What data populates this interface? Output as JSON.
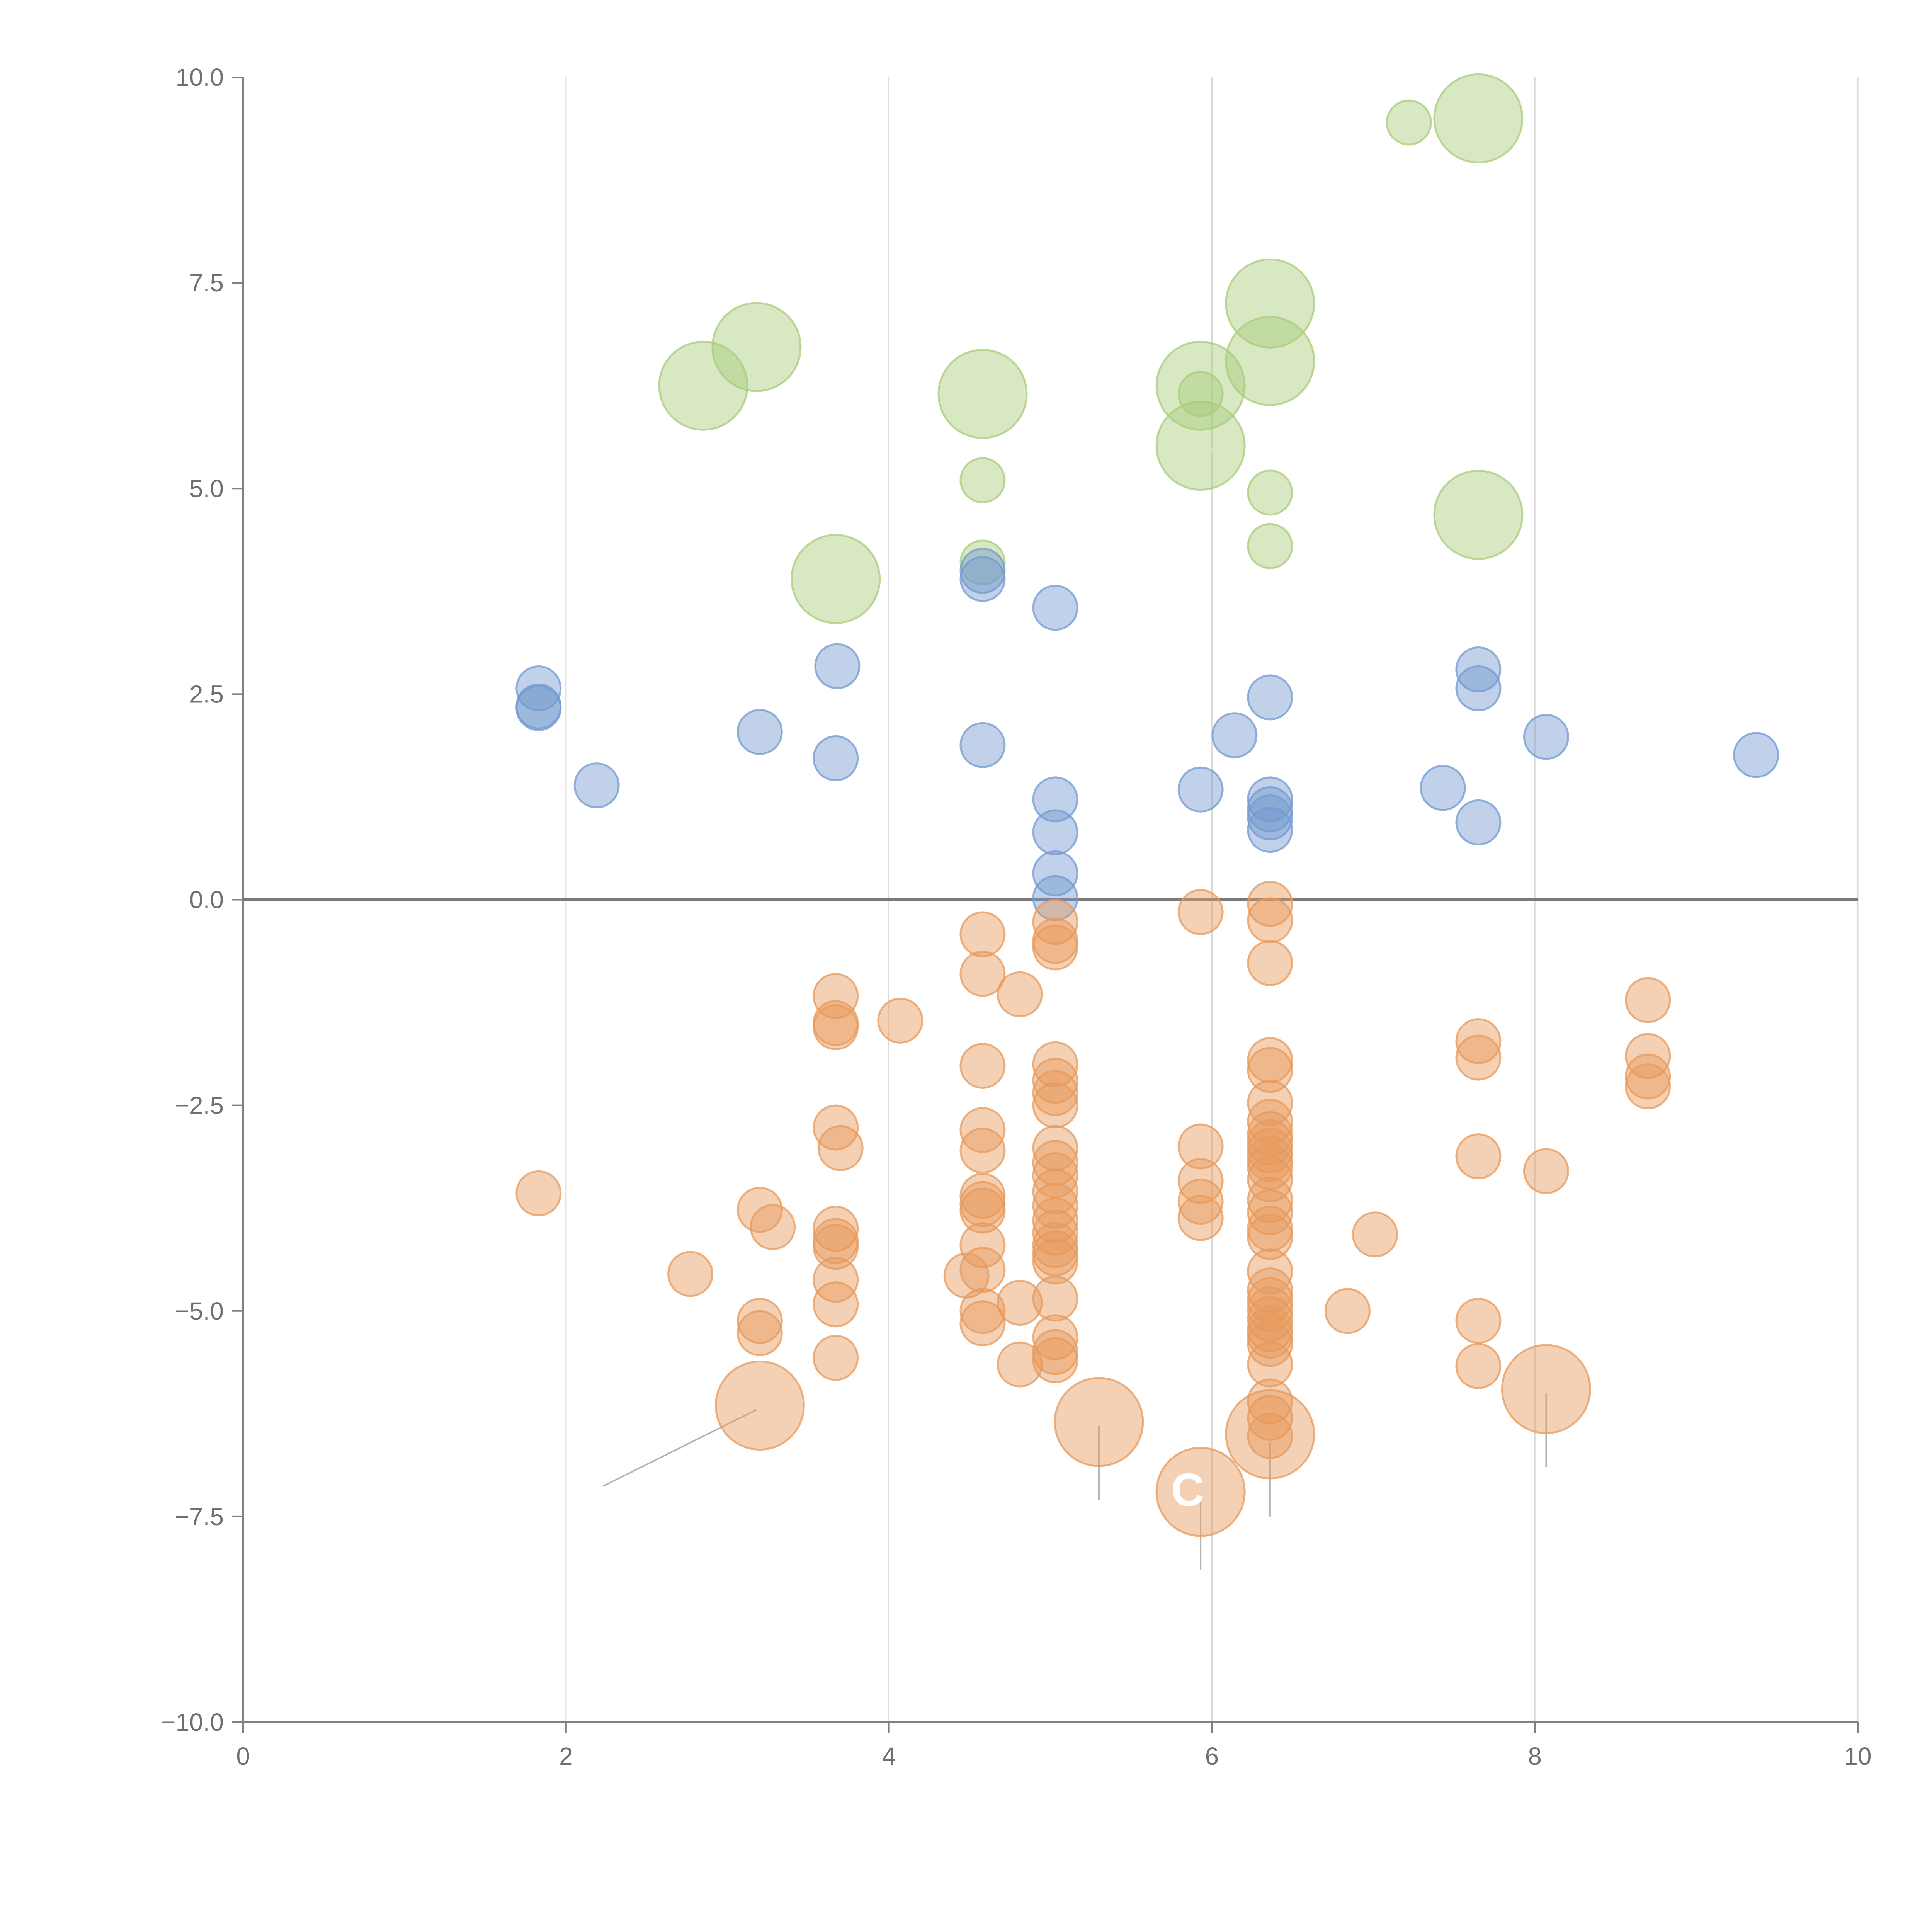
{
  "chart_data": {
    "type": "scatter",
    "title": "",
    "xlabel": "",
    "ylabel": "",
    "xlim": [
      0,
      10
    ],
    "ylim": [
      -10,
      10
    ],
    "grid": "vertical",
    "x_ticks": [
      "0",
      "2",
      "4",
      "6",
      "8",
      "10"
    ],
    "y_ticks": [
      "10.0",
      "7.5",
      "5.0",
      "2.5",
      "0.0",
      "−2.5",
      "−5.0",
      "−7.5",
      "−10.0"
    ],
    "annotation": "C",
    "colors": {
      "green": "#a9cc7a",
      "blue": "#7399cf",
      "orange": "#e79a5c"
    },
    "series": [
      {
        "name": "green",
        "color": "#a9cc7a",
        "points": [
          [
            7.22,
            9.45,
            0.6
          ],
          [
            7.65,
            9.5,
            1.2
          ],
          [
            6.36,
            7.25,
            1.2
          ],
          [
            6.36,
            6.55,
            1.2
          ],
          [
            3.18,
            6.72,
            1.2
          ],
          [
            2.85,
            6.25,
            1.2
          ],
          [
            4.58,
            6.15,
            1.2
          ],
          [
            5.93,
            6.25,
            1.2
          ],
          [
            5.93,
            6.15,
            0.6
          ],
          [
            5.93,
            5.52,
            1.2
          ],
          [
            4.58,
            5.1,
            0.6
          ],
          [
            6.36,
            4.95,
            0.6
          ],
          [
            7.65,
            4.68,
            1.2
          ],
          [
            6.36,
            4.3,
            0.6
          ],
          [
            4.58,
            4.1,
            0.6
          ],
          [
            3.67,
            3.9,
            1.2
          ]
        ]
      },
      {
        "name": "blue",
        "color": "#7399cf",
        "points": [
          [
            4.58,
            4.0,
            0.6
          ],
          [
            4.58,
            3.9,
            0.6
          ],
          [
            5.03,
            3.55,
            0.6
          ],
          [
            3.68,
            2.84,
            0.6
          ],
          [
            7.65,
            2.8,
            0.6
          ],
          [
            1.83,
            2.57,
            0.6
          ],
          [
            7.65,
            2.57,
            0.6
          ],
          [
            6.36,
            2.46,
            0.6
          ],
          [
            1.83,
            2.35,
            0.6
          ],
          [
            1.83,
            2.33,
            0.6
          ],
          [
            3.2,
            2.04,
            0.6
          ],
          [
            6.14,
            2.0,
            0.6
          ],
          [
            8.07,
            1.98,
            0.6
          ],
          [
            4.58,
            1.88,
            0.6
          ],
          [
            9.37,
            1.76,
            0.6
          ],
          [
            3.67,
            1.72,
            0.6
          ],
          [
            2.19,
            1.39,
            0.6
          ],
          [
            7.43,
            1.36,
            0.6
          ],
          [
            5.93,
            1.34,
            0.6
          ],
          [
            5.03,
            1.22,
            0.6
          ],
          [
            6.36,
            1.22,
            0.6
          ],
          [
            6.36,
            1.1,
            0.6
          ],
          [
            6.36,
            1.0,
            0.6
          ],
          [
            7.65,
            0.94,
            0.6
          ],
          [
            6.36,
            0.85,
            0.6
          ],
          [
            5.03,
            0.82,
            0.6
          ],
          [
            5.03,
            0.32,
            0.6
          ],
          [
            5.03,
            0.02,
            0.6
          ]
        ]
      },
      {
        "name": "orange",
        "color": "#e79a5c",
        "points": [
          [
            6.36,
            -0.05,
            0.6
          ],
          [
            5.93,
            -0.15,
            0.6
          ],
          [
            6.36,
            -0.25,
            0.6
          ],
          [
            5.03,
            -0.27,
            0.6
          ],
          [
            4.58,
            -0.42,
            0.6
          ],
          [
            5.03,
            -0.5,
            0.6
          ],
          [
            5.03,
            -0.58,
            0.6
          ],
          [
            6.36,
            -0.77,
            0.6
          ],
          [
            4.58,
            -0.9,
            0.6
          ],
          [
            4.81,
            -1.15,
            0.6
          ],
          [
            3.67,
            -1.17,
            0.6
          ],
          [
            8.7,
            -1.22,
            0.6
          ],
          [
            4.07,
            -1.47,
            0.6
          ],
          [
            3.67,
            -1.5,
            0.6
          ],
          [
            3.67,
            -1.55,
            0.6
          ],
          [
            7.65,
            -1.72,
            0.6
          ],
          [
            8.7,
            -1.9,
            0.6
          ],
          [
            7.65,
            -1.92,
            0.6
          ],
          [
            6.36,
            -1.95,
            0.6
          ],
          [
            5.03,
            -2.0,
            0.6
          ],
          [
            4.58,
            -2.02,
            0.6
          ],
          [
            6.36,
            -2.07,
            0.6
          ],
          [
            8.7,
            -2.15,
            0.6
          ],
          [
            5.03,
            -2.2,
            0.6
          ],
          [
            8.7,
            -2.27,
            0.6
          ],
          [
            5.03,
            -2.35,
            0.6
          ],
          [
            5.03,
            -2.5,
            0.6
          ],
          [
            6.36,
            -2.47,
            0.6
          ],
          [
            6.36,
            -2.7,
            0.6
          ],
          [
            3.67,
            -2.77,
            0.6
          ],
          [
            4.58,
            -2.8,
            0.6
          ],
          [
            6.36,
            -2.85,
            0.6
          ],
          [
            6.36,
            -2.95,
            0.6
          ],
          [
            5.03,
            -3.02,
            0.6
          ],
          [
            5.93,
            -3.0,
            0.6
          ],
          [
            3.7,
            -3.02,
            0.6
          ],
          [
            4.58,
            -3.05,
            0.6
          ],
          [
            6.36,
            -3.05,
            0.6
          ],
          [
            6.36,
            -3.15,
            0.6
          ],
          [
            7.65,
            -3.12,
            0.6
          ],
          [
            5.03,
            -3.2,
            0.6
          ],
          [
            6.36,
            -3.25,
            0.6
          ],
          [
            8.07,
            -3.3,
            0.6
          ],
          [
            5.03,
            -3.35,
            0.6
          ],
          [
            6.36,
            -3.4,
            0.6
          ],
          [
            5.93,
            -3.42,
            0.6
          ],
          [
            5.03,
            -3.55,
            0.6
          ],
          [
            1.83,
            -3.57,
            0.6
          ],
          [
            4.58,
            -3.6,
            0.6
          ],
          [
            4.58,
            -3.7,
            0.6
          ],
          [
            6.36,
            -3.65,
            0.6
          ],
          [
            5.93,
            -3.67,
            0.6
          ],
          [
            5.03,
            -3.72,
            0.6
          ],
          [
            4.58,
            -3.78,
            0.6
          ],
          [
            3.2,
            -3.77,
            0.6
          ],
          [
            6.36,
            -3.8,
            0.6
          ],
          [
            5.93,
            -3.87,
            0.6
          ],
          [
            5.03,
            -3.9,
            0.6
          ],
          [
            3.28,
            -3.98,
            0.6
          ],
          [
            3.67,
            -4.0,
            0.6
          ],
          [
            6.36,
            -4.0,
            0.6
          ],
          [
            5.03,
            -4.05,
            0.6
          ],
          [
            7.01,
            -4.07,
            0.6
          ],
          [
            3.67,
            -4.15,
            0.6
          ],
          [
            6.36,
            -4.1,
            0.6
          ],
          [
            5.03,
            -4.2,
            0.6
          ],
          [
            4.58,
            -4.2,
            0.6
          ],
          [
            3.67,
            -4.22,
            0.6
          ],
          [
            5.03,
            -4.3,
            0.6
          ],
          [
            5.03,
            -4.4,
            0.6
          ],
          [
            4.58,
            -4.5,
            0.6
          ],
          [
            6.36,
            -4.52,
            0.6
          ],
          [
            2.77,
            -4.55,
            0.6
          ],
          [
            4.48,
            -4.57,
            0.6
          ],
          [
            3.67,
            -4.62,
            0.6
          ],
          [
            6.36,
            -4.75,
            0.6
          ],
          [
            4.81,
            -4.9,
            0.6
          ],
          [
            5.03,
            -4.85,
            0.6
          ],
          [
            6.36,
            -4.87,
            0.6
          ],
          [
            3.67,
            -4.92,
            0.6
          ],
          [
            6.36,
            -4.98,
            0.6
          ],
          [
            6.84,
            -5.0,
            0.6
          ],
          [
            4.58,
            -5.0,
            0.6
          ],
          [
            6.36,
            -5.1,
            0.6
          ],
          [
            3.2,
            -5.12,
            0.6
          ],
          [
            7.65,
            -5.12,
            0.6
          ],
          [
            4.58,
            -5.15,
            0.6
          ],
          [
            6.36,
            -5.22,
            0.6
          ],
          [
            3.2,
            -5.27,
            0.6
          ],
          [
            6.36,
            -5.3,
            0.6
          ],
          [
            5.03,
            -5.32,
            0.6
          ],
          [
            6.36,
            -5.4,
            0.6
          ],
          [
            5.03,
            -5.5,
            0.6
          ],
          [
            3.67,
            -5.57,
            0.6
          ],
          [
            5.03,
            -5.6,
            0.6
          ],
          [
            4.81,
            -5.65,
            0.6
          ],
          [
            6.36,
            -5.65,
            0.6
          ],
          [
            7.65,
            -5.67,
            0.6
          ],
          [
            8.07,
            -5.95,
            1.2
          ],
          [
            6.36,
            -6.1,
            0.6
          ],
          [
            3.2,
            -6.15,
            1.2
          ],
          [
            6.36,
            -6.3,
            0.6
          ],
          [
            5.3,
            -6.35,
            1.2
          ],
          [
            6.36,
            -6.5,
            1.2
          ],
          [
            6.36,
            -6.52,
            0.6
          ],
          [
            5.93,
            -7.2,
            1.2
          ]
        ]
      }
    ],
    "leader_lines": [
      {
        "color": "#b3b3b3",
        "x1": 3.18,
        "y1": -6.2,
        "x2": 2.23,
        "y2": -7.13
      },
      {
        "color": "#b3b3b3",
        "x1": 5.3,
        "y1": -6.4,
        "x2": 5.3,
        "y2": -7.3
      },
      {
        "color": "#b3b3b3",
        "x1": 5.93,
        "y1": -7.3,
        "x2": 5.93,
        "y2": -8.15
      },
      {
        "color": "#b3b3b3",
        "x1": 6.36,
        "y1": -6.6,
        "x2": 6.36,
        "y2": -7.5
      },
      {
        "color": "#b3b3b3",
        "x1": 8.07,
        "y1": -6.0,
        "x2": 8.07,
        "y2": -6.9
      },
      {
        "color": "#ffffff",
        "x1": 3.07,
        "y1": 6.75,
        "x2": 3.25,
        "y2": 6.97
      },
      {
        "color": "#ffffff",
        "x1": 2.9,
        "y1": 6.2,
        "x2": 3.0,
        "y2": 5.95
      },
      {
        "color": "#ffffff",
        "x1": 3.77,
        "y1": 3.97,
        "x2": 3.97,
        "y2": 4.2
      },
      {
        "color": "#ffffff",
        "x1": 6.0,
        "y1": 6.2,
        "x2": 6.1,
        "y2": 6.0
      },
      {
        "color": "#ffffff",
        "x1": 5.99,
        "y1": 5.5,
        "x2": 6.1,
        "y2": 5.27
      },
      {
        "color": "#ffffff",
        "x1": 6.39,
        "y1": 7.3,
        "x2": 6.45,
        "y2": 7.55
      },
      {
        "color": "#ffffff",
        "x1": 6.4,
        "y1": 6.6,
        "x2": 6.5,
        "y2": 6.85
      },
      {
        "color": "#ffffff",
        "x1": 7.7,
        "y1": 9.53,
        "x2": 7.92,
        "y2": 9.6
      },
      {
        "color": "#ffffff",
        "x1": 7.7,
        "y1": 4.7,
        "x2": 7.92,
        "y2": 4.8
      },
      {
        "color": "#ffffff",
        "x1": 6.4,
        "y1": 4.35,
        "x2": 6.47,
        "y2": 4.2
      }
    ],
    "callout_position": [
      5.85,
      -7.18
    ]
  }
}
